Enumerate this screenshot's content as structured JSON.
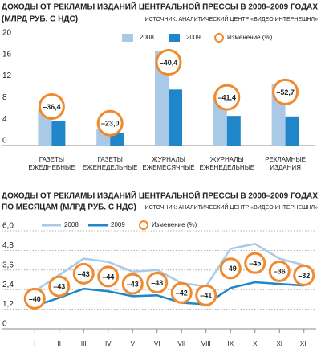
{
  "chart_data": [
    {
      "type": "bar",
      "title": "ДОХОДЫ ОТ РЕКЛАМЫ ИЗДАНИЙ ЦЕНТРАЛЬНОЙ ПРЕССЫ В 2008–2009 ГОДАХ",
      "subtitle": "(МЛРД РУБ. С НДС)",
      "source": "ИСТОЧНИК: АНАЛИТИЧЕСКИЙ ЦЕНТР «ВИДЕО ИНТЕРНЕШНЛ»",
      "categories": [
        "ГАЗЕТЫ ЕЖЕДНЕВНЫЕ",
        "ГАЗЕТЫ ЕЖЕНЕДЕЛЬНЫЕ",
        "ЖУРНАЛЫ ЕЖЕМЕСЯЧНЫЕ",
        "ЖУРНАЛЫ ЕЖЕНЕДЕЛЬНЫЕ",
        "РЕКЛАМНЫЕ ИЗДАНИЯ"
      ],
      "series": [
        {
          "name": "2008",
          "color": "#a9c9e6",
          "values": [
            7.0,
            3.0,
            17.5,
            9.4,
            11.5
          ]
        },
        {
          "name": "2009",
          "color": "#1f86c9",
          "values": [
            4.5,
            2.3,
            10.4,
            5.5,
            5.4
          ]
        }
      ],
      "changes": {
        "name": "Изменение (%)",
        "color": "#f08a2c",
        "values": [
          -36.4,
          -23.0,
          -40.4,
          -41.4,
          -52.7
        ],
        "value_labels": [
          "–36,4",
          "–23,0",
          "–40,4",
          "–41,4",
          "–52,7"
        ]
      },
      "ylim": [
        0,
        20
      ],
      "yticks": [
        0,
        4,
        8,
        12,
        16,
        20
      ],
      "grid": false
    },
    {
      "type": "line",
      "title": "ДОХОДЫ ОТ РЕКЛАМЫ ИЗДАНИЙ ЦЕНТРАЛЬНОЙ ПРЕССЫ В 2008–2009 ГОДАХ",
      "subtitle": "ПО МЕСЯЦАМ (МЛРД РУБ. С НДС)",
      "source": "ИСТОЧНИК: АНАЛИТИЧЕСКИЙ ЦЕНТР «ВИДЕО ИНТЕРНЕШНЛ»",
      "categories": [
        "I",
        "II",
        "III",
        "IV",
        "V",
        "VI",
        "VII",
        "VIII",
        "IX",
        "X",
        "XI",
        "XII"
      ],
      "series": [
        {
          "name": "2008",
          "color": "#a9c9e6",
          "values": [
            2.3,
            3.3,
            4.3,
            4.1,
            3.5,
            3.6,
            2.8,
            2.6,
            4.9,
            5.2,
            4.3,
            3.9
          ]
        },
        {
          "name": "2009",
          "color": "#1f86c9",
          "values": [
            1.4,
            1.9,
            2.45,
            2.3,
            2.0,
            2.05,
            1.6,
            1.5,
            2.5,
            2.85,
            2.75,
            2.65
          ]
        }
      ],
      "changes": {
        "name": "Изменение (%)",
        "color": "#f08a2c",
        "values": [
          -40,
          -43,
          -43,
          -44,
          -43,
          -43,
          -42,
          -41,
          -49,
          -45,
          -36,
          -32
        ],
        "value_labels": [
          "–40",
          "–43",
          "–43",
          "–44",
          "–43",
          "–43",
          "–42",
          "–41",
          "–49",
          "–45",
          "–36",
          "–32"
        ]
      },
      "ylim": [
        0,
        6
      ],
      "yticks": [
        0,
        {
          "value": 1.2,
          "label": "1,2"
        },
        {
          "value": 2.4,
          "label": "2,4"
        },
        {
          "value": 3.6,
          "label": "3,6"
        },
        {
          "value": 4.8,
          "label": "4,8"
        },
        {
          "value": 6,
          "label": "6,0"
        }
      ],
      "grid": true
    }
  ]
}
